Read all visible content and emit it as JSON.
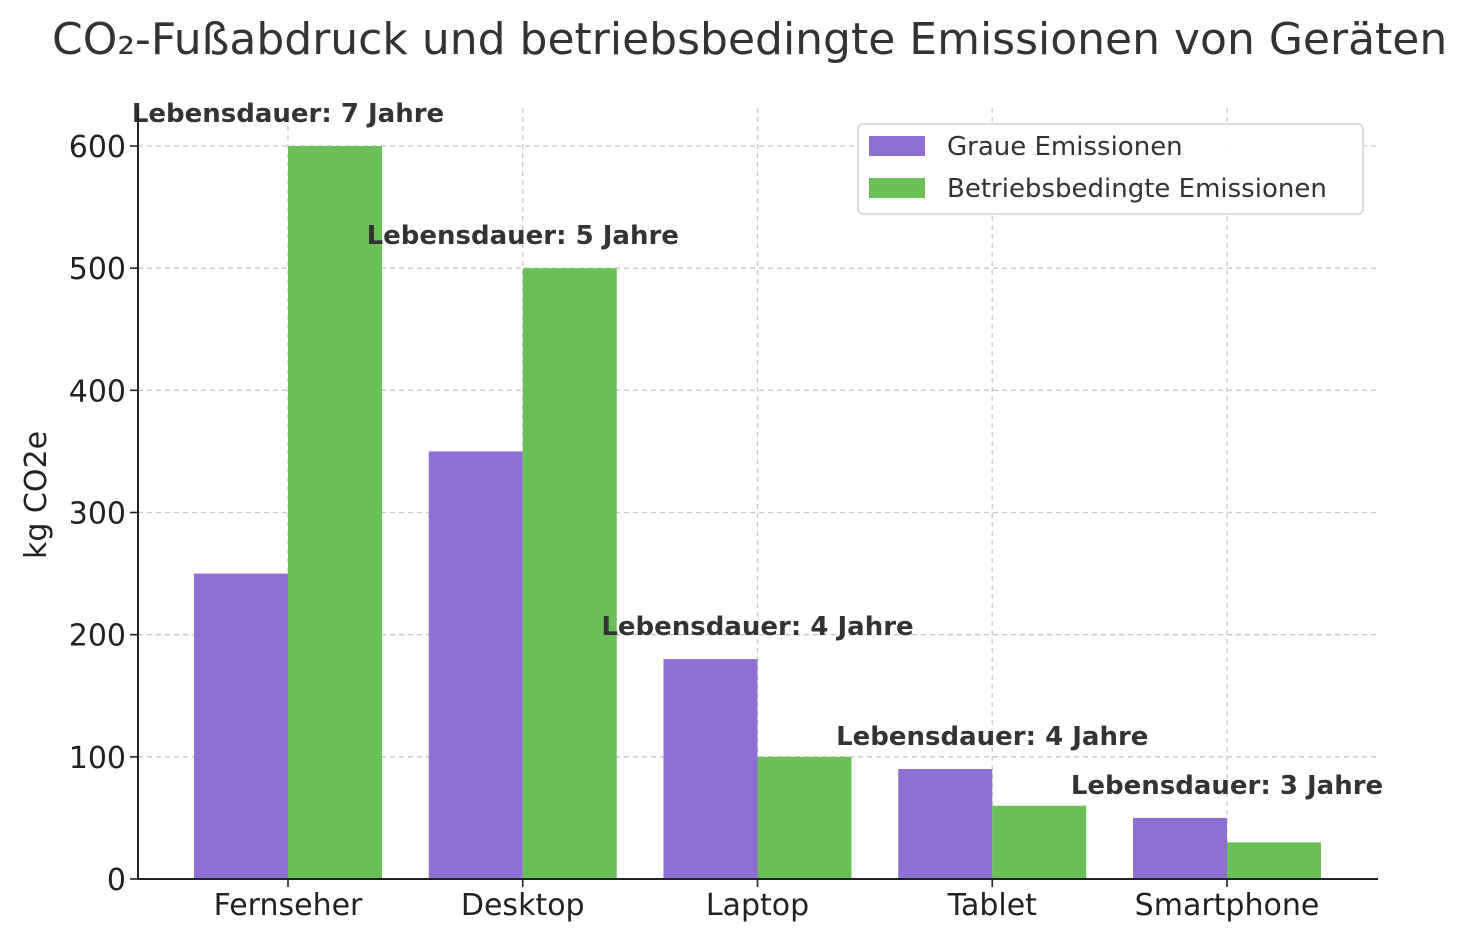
{
  "chart_data": {
    "type": "bar",
    "title": "CO₂-Fußabdruck und betriebsbedingte Emissionen von Geräten",
    "xlabel": "",
    "ylabel": "kg CO2e",
    "ylim": [
      0,
      620
    ],
    "yticks": [
      0,
      100,
      200,
      300,
      400,
      500,
      600
    ],
    "grid": true,
    "legend_position": "top-right",
    "categories": [
      "Fernseher",
      "Desktop",
      "Laptop",
      "Tablet",
      "Smartphone"
    ],
    "series": [
      {
        "name": "Graue Emissionen",
        "color": "#8e70d4",
        "values": [
          250,
          350,
          180,
          90,
          50
        ]
      },
      {
        "name": "Betriebsbedingte Emissionen",
        "color": "#6abf59",
        "values": [
          600,
          500,
          100,
          60,
          30
        ]
      }
    ],
    "annotations": [
      "Lebensdauer: 7 Jahre",
      "Lebensdauer: 5 Jahre",
      "Lebensdauer: 4 Jahre",
      "Lebensdauer: 4 Jahre",
      "Lebensdauer: 3 Jahre"
    ]
  }
}
